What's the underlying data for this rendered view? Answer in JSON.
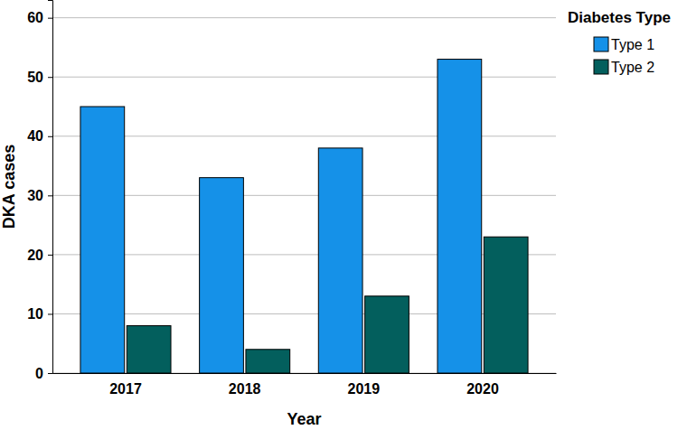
{
  "chart_data": {
    "type": "bar",
    "x_label": "Year",
    "y_label": "DKA cases",
    "legend_title": "Diabetes Type",
    "categories": [
      "2017",
      "2018",
      "2019",
      "2020"
    ],
    "series": [
      {
        "name": "Type 1",
        "color": "#1591e8",
        "values": [
          45,
          33,
          38,
          53
        ]
      },
      {
        "name": "Type 2",
        "color": "#035f5d",
        "values": [
          8,
          4,
          13,
          23
        ]
      }
    ],
    "ylim": [
      0,
      63
    ],
    "yticks": [
      0,
      10,
      20,
      30,
      40,
      50,
      60
    ],
    "grid": true,
    "legend": "top-right"
  }
}
